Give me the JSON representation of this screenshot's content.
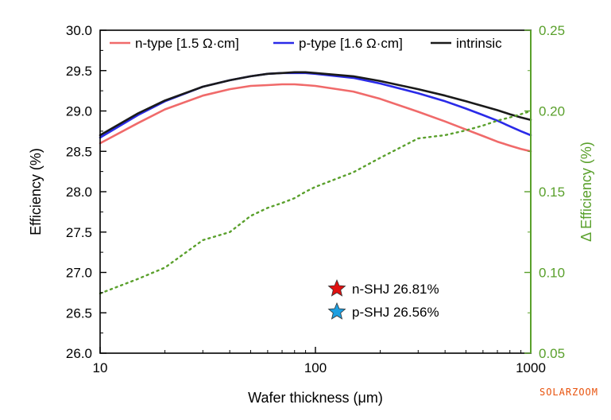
{
  "chart_data": {
    "type": "line",
    "xscale": "log",
    "xlim": [
      10,
      1000
    ],
    "xticks": [
      "10",
      "100",
      "1000"
    ],
    "xlabel": "Wafer thickness (μm)",
    "ylabel": "Efficiency (%)",
    "ylim": [
      26.0,
      30.0
    ],
    "yticks": [
      "26.0",
      "26.5",
      "27.0",
      "27.5",
      "28.0",
      "28.5",
      "29.0",
      "29.5",
      "30.0"
    ],
    "y2label": "Δ Efficiency (%)",
    "y2lim": [
      0.05,
      0.25
    ],
    "y2ticks": [
      "0.05",
      "0.10",
      "0.15",
      "0.20",
      "0.25"
    ],
    "legend": "top",
    "x": [
      10,
      15,
      20,
      30,
      40,
      50,
      60,
      70,
      80,
      90,
      100,
      150,
      200,
      300,
      400,
      500,
      600,
      700,
      800,
      900,
      1000
    ],
    "series": [
      {
        "name": "n-type [1.5 Ω·cm]",
        "color": "#f06a6a",
        "axis": "left",
        "values": [
          28.6,
          28.85,
          29.02,
          29.19,
          29.27,
          29.31,
          29.32,
          29.33,
          29.33,
          29.32,
          29.31,
          29.24,
          29.15,
          28.99,
          28.87,
          28.77,
          28.69,
          28.62,
          28.57,
          28.53,
          28.5
        ]
      },
      {
        "name": "p-type [1.6 Ω·cm]",
        "color": "#2a2ae8",
        "axis": "left",
        "values": [
          28.67,
          28.95,
          29.12,
          29.3,
          29.38,
          29.43,
          29.46,
          29.47,
          29.47,
          29.47,
          29.46,
          29.41,
          29.34,
          29.22,
          29.12,
          29.03,
          28.95,
          28.88,
          28.81,
          28.75,
          28.7
        ]
      },
      {
        "name": "intrinsic",
        "color": "#1a1a1a",
        "axis": "left",
        "values": [
          28.7,
          28.97,
          29.13,
          29.3,
          29.38,
          29.43,
          29.46,
          29.47,
          29.48,
          29.48,
          29.47,
          29.43,
          29.37,
          29.27,
          29.19,
          29.12,
          29.06,
          29.01,
          28.96,
          28.92,
          28.89
        ]
      },
      {
        "name": "",
        "color": "#5aa02c",
        "axis": "right",
        "style": "dotted",
        "values": [
          0.087,
          0.096,
          0.103,
          0.12,
          0.125,
          0.135,
          0.14,
          0.143,
          0.146,
          0.15,
          0.153,
          0.162,
          0.171,
          0.183,
          0.185,
          0.188,
          0.191,
          0.194,
          0.196,
          0.198,
          0.2
        ]
      }
    ],
    "annotations": [
      {
        "text": "n-SHJ 26.81%",
        "marker": "star",
        "color": "#e01010",
        "x": 120,
        "y": 26.81
      },
      {
        "text": "p-SHJ 26.56%",
        "marker": "star",
        "color": "#1e9fe0",
        "x": 120,
        "y": 26.56
      }
    ]
  },
  "watermark": "SOLARZOOM"
}
